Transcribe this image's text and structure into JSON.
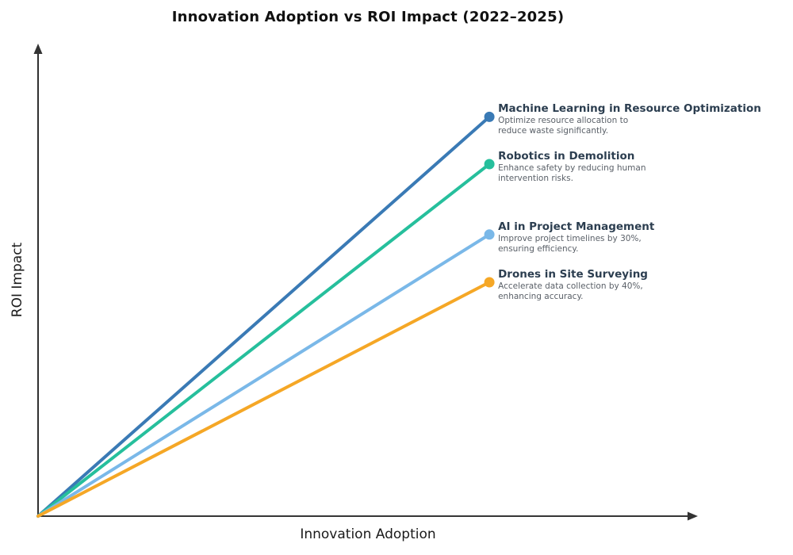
{
  "chart_data": {
    "type": "line",
    "title": "Innovation Adoption vs ROI Impact (2022–2025)",
    "xlabel": "Innovation Adoption",
    "ylabel": "ROI Impact",
    "x_range": [
      0,
      1
    ],
    "y_range": [
      0,
      1
    ],
    "grid": false,
    "legend_position": "inline-labels-right-of-endpoints",
    "axes_color": "#1a1a1a",
    "label_title_color": "#2c3e50",
    "label_desc_color": "#5a6068",
    "series": [
      {
        "name": "Machine Learning in Resource Optimization",
        "description": "Optimize resource allocation to\nreduce waste significantly.",
        "color": "#3a7ab5",
        "start": {
          "x": 0,
          "y": 0
        },
        "end": {
          "x": 0.684,
          "y": 0.845
        }
      },
      {
        "name": "Robotics in Demolition",
        "description": "Enhance safety by reducing human\nintervention risks.",
        "color": "#26bf9c",
        "start": {
          "x": 0,
          "y": 0
        },
        "end": {
          "x": 0.684,
          "y": 0.745
        }
      },
      {
        "name": "AI in Project Management",
        "description": "Improve project timelines by 30%,\nensuring efficiency.",
        "color": "#7ab8e8",
        "start": {
          "x": 0,
          "y": 0
        },
        "end": {
          "x": 0.684,
          "y": 0.596
        }
      },
      {
        "name": "Drones in Site Surveying",
        "description": "Accelerate data collection by 40%,\nenhancing accuracy.",
        "color": "#f5a726",
        "start": {
          "x": 0,
          "y": 0
        },
        "end": {
          "x": 0.684,
          "y": 0.495
        }
      }
    ]
  }
}
